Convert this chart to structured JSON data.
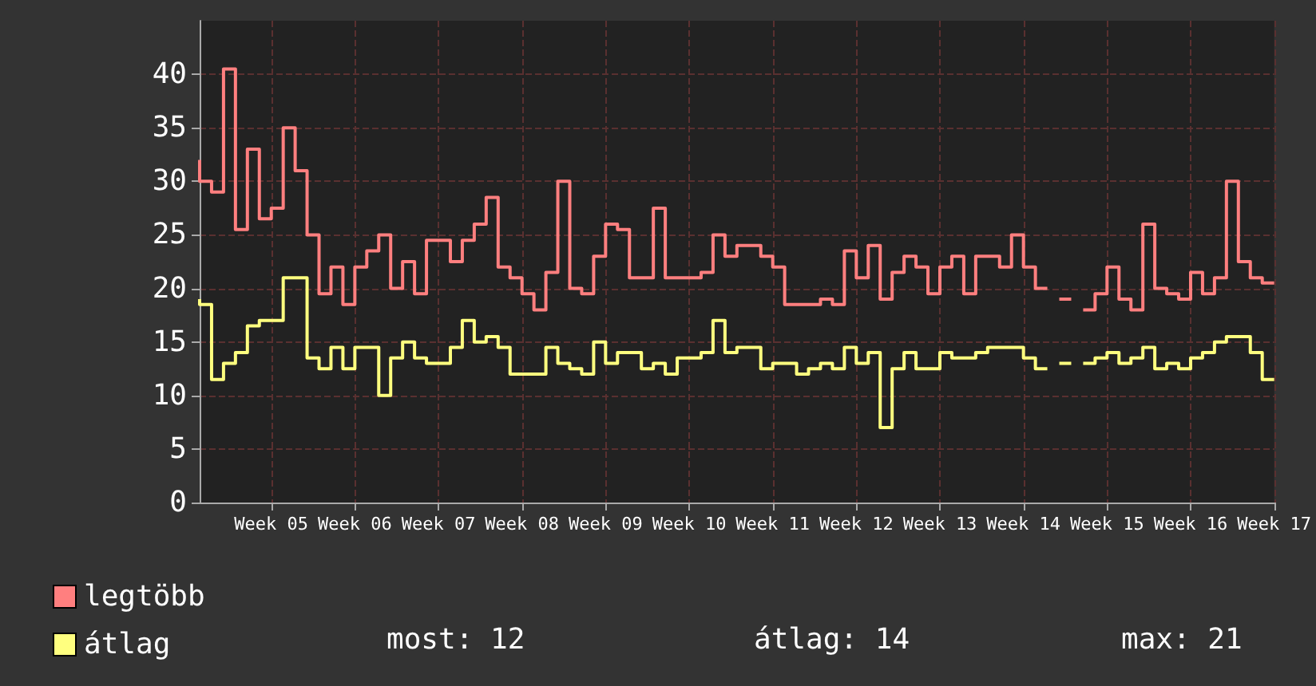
{
  "chart_data": {
    "type": "step",
    "categories": [
      null,
      null,
      null,
      null,
      null,
      null,
      "Week 05",
      null,
      null,
      null,
      null,
      null,
      null,
      "Week 06",
      null,
      null,
      null,
      null,
      null,
      null,
      "Week 07",
      null,
      null,
      null,
      null,
      null,
      null,
      "Week 08",
      null,
      null,
      null,
      null,
      null,
      null,
      "Week 09",
      null,
      null,
      null,
      null,
      null,
      null,
      "Week 10",
      null,
      null,
      null,
      null,
      null,
      null,
      "Week 11",
      null,
      null,
      null,
      null,
      null,
      null,
      "Week 12",
      null,
      null,
      null,
      null,
      null,
      null,
      "Week 13",
      null,
      null,
      null,
      null,
      null,
      null,
      "Week 14",
      null,
      null,
      null,
      null,
      null,
      null,
      "Week 15",
      null,
      null,
      null,
      null,
      null,
      null,
      "Week 16",
      null,
      null,
      null,
      null,
      null,
      null,
      "Week 17"
    ],
    "series": [
      {
        "name": "legtöbb",
        "color": "#ff7f7f",
        "values": [
          32,
          30,
          29,
          40.5,
          25.5,
          33,
          26.5,
          27.5,
          35,
          31,
          25,
          19.5,
          22,
          18.5,
          22,
          23.5,
          25,
          20,
          22.5,
          19.5,
          24.5,
          24.5,
          22.5,
          24.5,
          26,
          28.5,
          22,
          21,
          19.5,
          18,
          21.5,
          30,
          20,
          19.5,
          23,
          26,
          25.5,
          21,
          21,
          27.5,
          21,
          21,
          21,
          21.5,
          25,
          23,
          24,
          24,
          23,
          22,
          18.5,
          18.5,
          18.5,
          19,
          18.5,
          23.5,
          21,
          24,
          19,
          21.5,
          23,
          22,
          19.5,
          22,
          23,
          19.5,
          23,
          23,
          22,
          25,
          22,
          20,
          null,
          19,
          null,
          18,
          19.5,
          22,
          19,
          18,
          26,
          20,
          19.5,
          19,
          21.5,
          19.5,
          21,
          30,
          22.5,
          21,
          20.5
        ]
      },
      {
        "name": "átlag",
        "color": "#ffff7f",
        "values": [
          19,
          18.5,
          11.5,
          13,
          14,
          16.5,
          17,
          17,
          21,
          21,
          13.5,
          12.5,
          14.5,
          12.5,
          14.5,
          14.5,
          10,
          13.5,
          15,
          13.5,
          13,
          13,
          14.5,
          17,
          15,
          15.5,
          14.5,
          12,
          12,
          12,
          14.5,
          13,
          12.5,
          12,
          15,
          13,
          14,
          14,
          12.5,
          13,
          12,
          13.5,
          13.5,
          14,
          17,
          14,
          14.5,
          14.5,
          12.5,
          13,
          13,
          12,
          12.5,
          13,
          12.5,
          14.5,
          13,
          14,
          7,
          12.5,
          14,
          12.5,
          12.5,
          14,
          13.5,
          13.5,
          14,
          14.5,
          14.5,
          14.5,
          13.5,
          12.5,
          null,
          13,
          null,
          13,
          13.5,
          14,
          13,
          13.5,
          14.5,
          12.5,
          13,
          12.5,
          13.5,
          14,
          15,
          15.5,
          15.5,
          14,
          11.5
        ]
      }
    ],
    "ylim": [
      0,
      45
    ],
    "yticks": [
      0,
      5,
      10,
      15,
      20,
      25,
      30,
      35,
      40
    ],
    "grid": true,
    "legend": "bottom left",
    "marker": "none",
    "line_style": "solid",
    "annotations": [
      "most: 12",
      "átlag: 14",
      "max: 21"
    ]
  }
}
